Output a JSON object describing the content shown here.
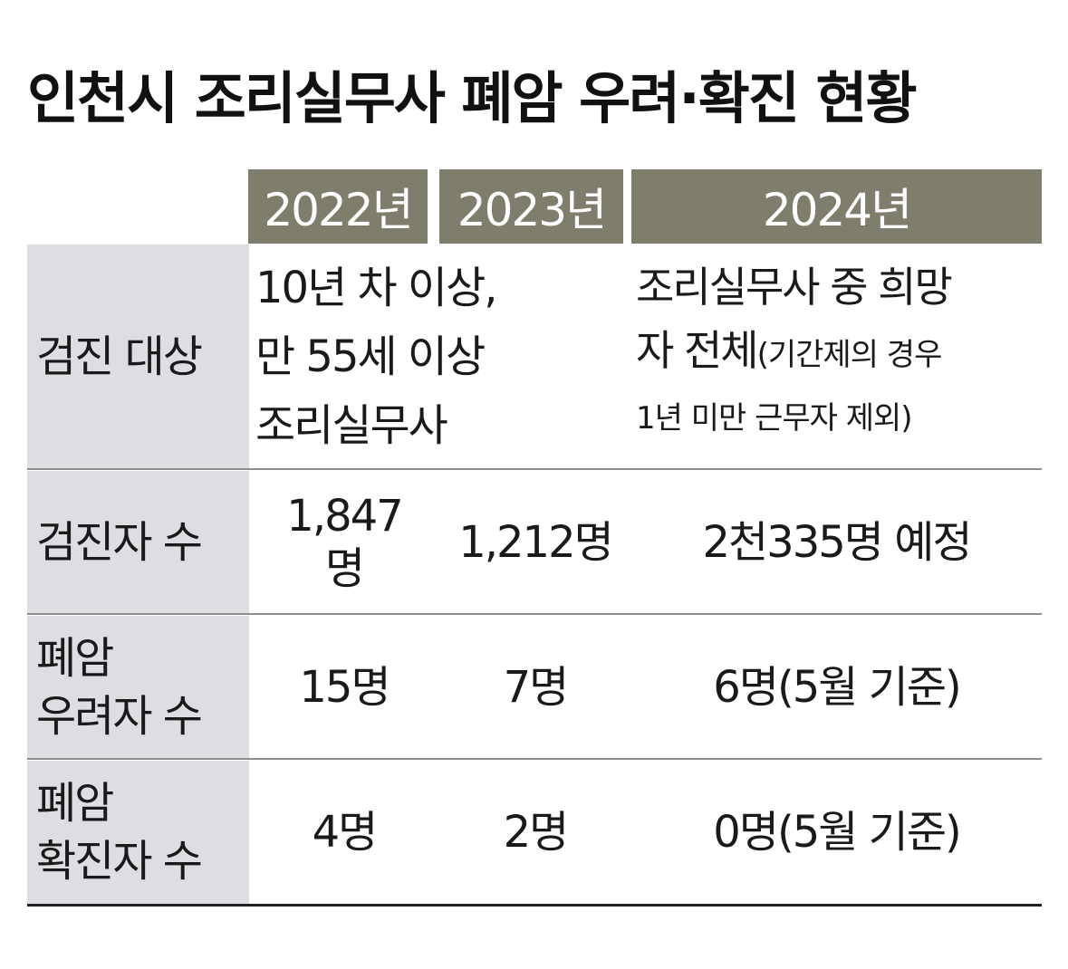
{
  "title": "인천시 조리실무사 폐암 우려·확진 현황",
  "years": [
    "2022년",
    "2023년",
    "2024년"
  ],
  "rows": [
    {
      "label": "검진 대상",
      "y2022_2023": "10년 차 이상,\n만 55세 이상\n조리실무사",
      "y2024_line1": "조리실무사 중 희망",
      "y2024_line2_main": "자 전체",
      "y2024_line2_note": "(기간제의 경우",
      "y2024_line3_note": "1년 미만 근무자 제외)"
    },
    {
      "label": "검진자 수",
      "y2022": "1,847\n명",
      "y2023": "1,212명",
      "y2024": "2천335명 예정"
    },
    {
      "label": "폐암\n우려자 수",
      "y2022": "15명",
      "y2023": "7명",
      "y2024": "6명(5월 기준)"
    },
    {
      "label": "폐암\n확진자 수",
      "y2022": "4명",
      "y2023": "2명",
      "y2024": "0명(5월 기준)"
    }
  ]
}
